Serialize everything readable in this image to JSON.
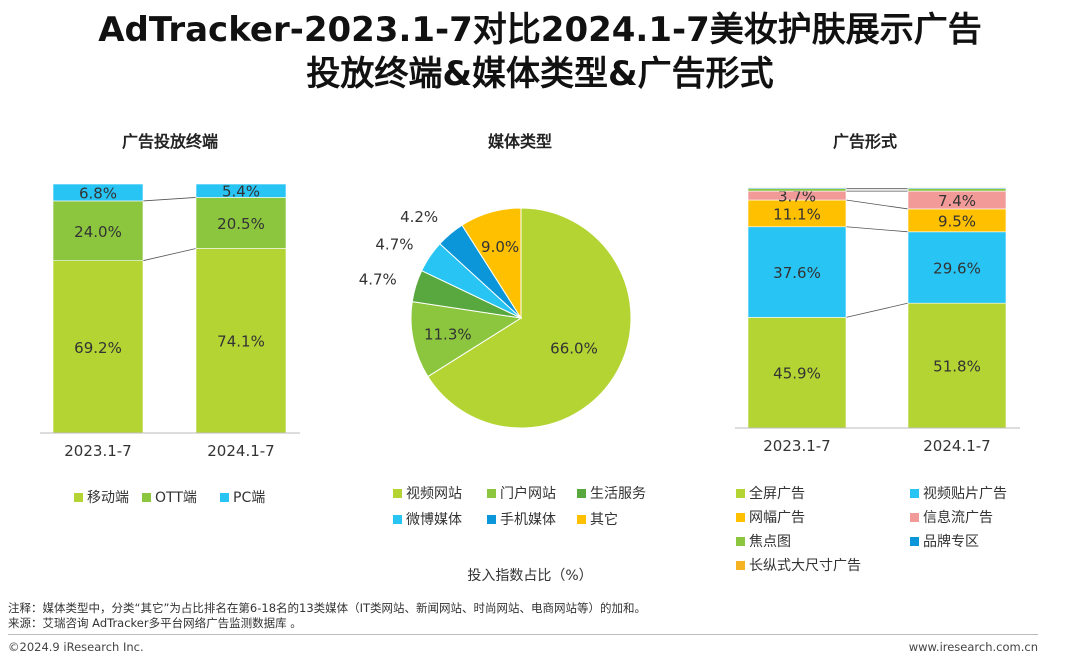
{
  "title": {
    "line1": "AdTracker-2023.1-7对比2024.1-7美妆护肤展示广告",
    "line2": "投放终端&媒体类型&广告形式"
  },
  "colors": {
    "light_green": "#b4d434",
    "mid_green": "#8cc63f",
    "dark_green": "#58a83f",
    "sky_blue": "#27c4f4",
    "blue": "#0a96d8",
    "yellow": "#ffc000",
    "pink": "#f19a98",
    "orange": "#f5b324"
  },
  "chart_data": [
    {
      "type": "bar",
      "stacked": true,
      "title": "广告投放终端",
      "categories": [
        "2023.1-7",
        "2024.1-7"
      ],
      "series": [
        {
          "name": "移动端",
          "color": "#b4d434",
          "values": [
            69.2,
            74.1
          ],
          "labels": [
            "69.2%",
            "74.1%"
          ]
        },
        {
          "name": "OTT端",
          "color": "#8cc63f",
          "values": [
            24.0,
            20.5
          ],
          "labels": [
            "24.0%",
            "20.5%"
          ]
        },
        {
          "name": "PC端",
          "color": "#27c4f4",
          "values": [
            6.8,
            5.4
          ],
          "labels": [
            "6.8%",
            "5.4%"
          ]
        }
      ],
      "legend": [
        "移动端",
        "OTT端",
        "PC端"
      ]
    },
    {
      "type": "pie",
      "title": "媒体类型",
      "slices": [
        {
          "name": "视频网站",
          "value": 66.0,
          "label": "66.0%",
          "color": "#b4d434"
        },
        {
          "name": "门户网站",
          "value": 11.3,
          "label": "11.3%",
          "color": "#8cc63f"
        },
        {
          "name": "生活服务",
          "value": 4.7,
          "label": "4.7%",
          "color": "#58a83f"
        },
        {
          "name": "微博媒体",
          "value": 4.7,
          "label": "4.7%",
          "color": "#27c4f4"
        },
        {
          "name": "手机媒体",
          "value": 4.2,
          "label": "4.2%",
          "color": "#0a96d8"
        },
        {
          "name": "其它",
          "value": 9.0,
          "label": "9.0%",
          "color": "#ffc000"
        }
      ],
      "legend": [
        "视频网站",
        "门户网站",
        "生活服务",
        "微博媒体",
        "手机媒体",
        "其它"
      ]
    },
    {
      "type": "bar",
      "stacked": true,
      "title": "广告形式",
      "categories": [
        "2023.1-7",
        "2024.1-7"
      ],
      "series": [
        {
          "name": "全屏广告",
          "color": "#b4d434",
          "values": [
            45.9,
            51.8
          ],
          "labels": [
            "45.9%",
            "51.8%"
          ]
        },
        {
          "name": "视频贴片广告",
          "color": "#27c4f4",
          "values": [
            37.6,
            29.6
          ],
          "labels": [
            "37.6%",
            "29.6%"
          ]
        },
        {
          "name": "网幅广告",
          "color": "#ffc000",
          "values": [
            11.1,
            9.5
          ],
          "labels": [
            "11.1%",
            "9.5%"
          ]
        },
        {
          "name": "信息流广告",
          "color": "#f19a98",
          "values": [
            3.7,
            7.4
          ],
          "labels": [
            "3.7%",
            "7.4%"
          ]
        },
        {
          "name": "焦点图",
          "color": "#8cc63f",
          "values": [
            1.0,
            1.0
          ],
          "labels": [
            "",
            ""
          ]
        },
        {
          "name": "品牌专区",
          "color": "#0a96d8",
          "values": [
            0.4,
            0.4
          ],
          "labels": [
            "",
            ""
          ]
        },
        {
          "name": "长纵式大尺寸广告",
          "color": "#f5b324",
          "values": [
            0.3,
            0.3
          ],
          "labels": [
            "",
            ""
          ]
        }
      ],
      "legend": [
        "全屏广告",
        "视频贴片广告",
        "网幅广告",
        "信息流广告",
        "焦点图",
        "品牌专区",
        "长纵式大尺寸广告"
      ]
    }
  ],
  "center_caption": "投入指数占比（%）",
  "footnotes": {
    "note": "注释：媒体类型中，分类“其它”为占比排名在第6-18名的13类媒体（IT类网站、新闻网站、时尚网站、电商网站等）的加和。",
    "source": "来源：艾瑞咨询 AdTracker多平台网络广告监测数据库 。"
  },
  "footer": {
    "left": "©2024.9 iResearch Inc.",
    "right": "www.iresearch.com.cn"
  }
}
